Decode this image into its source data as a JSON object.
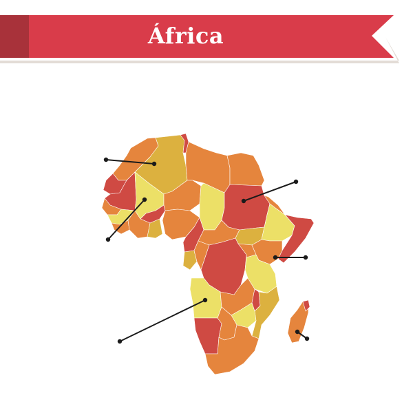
{
  "title": "África",
  "colors": {
    "banner": "#d93c4a",
    "banner_dark": "#a8323a",
    "banner_shadow": "#e3dcd6",
    "red": "#cf4a43",
    "orange": "#e5853d",
    "gold": "#dcb13f",
    "yellow": "#ece067",
    "marker": "#1b1b1b"
  },
  "map": {
    "region": "Africa",
    "pins": [
      {
        "name": "pin-mauritania"
      },
      {
        "name": "pin-west-africa"
      },
      {
        "name": "pin-sudan"
      },
      {
        "name": "pin-horn-of-africa"
      },
      {
        "name": "pin-angola-zambia"
      },
      {
        "name": "pin-madagascar"
      }
    ]
  }
}
